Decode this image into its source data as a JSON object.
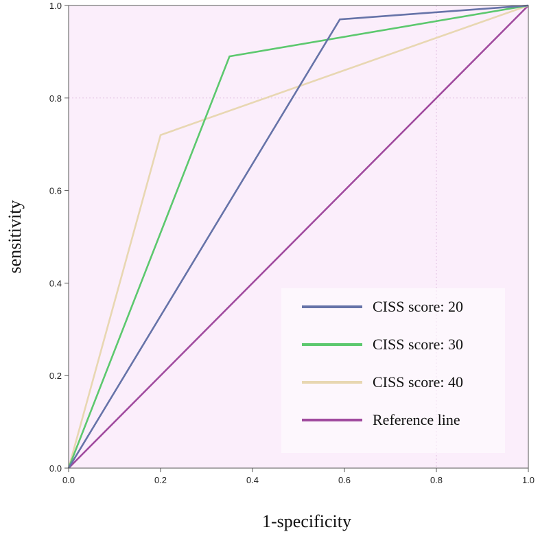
{
  "chart_data": {
    "type": "line",
    "title": "",
    "xlabel": "1-specificity",
    "ylabel": "sensitivity",
    "xlim": [
      0.0,
      1.0
    ],
    "ylim": [
      0.0,
      1.0
    ],
    "grid": false,
    "background": "#fbeefb",
    "legend_position": "bottom-right",
    "xticks": [
      {
        "value": 0.0,
        "label": "0.0"
      },
      {
        "value": 0.2,
        "label": "0.2"
      },
      {
        "value": 0.4,
        "label": "0.4"
      },
      {
        "value": 0.6,
        "label": "0.6"
      },
      {
        "value": 0.8,
        "label": "0.8"
      },
      {
        "value": 1.0,
        "label": "1.0"
      }
    ],
    "yticks": [
      {
        "value": 0.0,
        "label": "0.0"
      },
      {
        "value": 0.2,
        "label": "0.2"
      },
      {
        "value": 0.4,
        "label": "0.4"
      },
      {
        "value": 0.6,
        "label": "0.6"
      },
      {
        "value": 0.8,
        "label": "0.8"
      },
      {
        "value": 1.0,
        "label": "1.0"
      }
    ],
    "series": [
      {
        "name": "CISS  score: 20",
        "color": "#6673a8",
        "x": [
          0.0,
          0.59,
          1.0
        ],
        "y": [
          0.0,
          0.97,
          1.0
        ]
      },
      {
        "name": "CISS  score: 30",
        "color": "#5cc86e",
        "x": [
          0.0,
          0.35,
          1.0
        ],
        "y": [
          0.0,
          0.89,
          1.0
        ]
      },
      {
        "name": "CISS  score: 40",
        "color": "#e8d7b2",
        "x": [
          0.0,
          0.2,
          1.0
        ],
        "y": [
          0.0,
          0.72,
          1.0
        ]
      },
      {
        "name": "Reference line",
        "color": "#a04a9e",
        "x": [
          0.0,
          1.0
        ],
        "y": [
          0.0,
          1.0
        ]
      }
    ]
  }
}
